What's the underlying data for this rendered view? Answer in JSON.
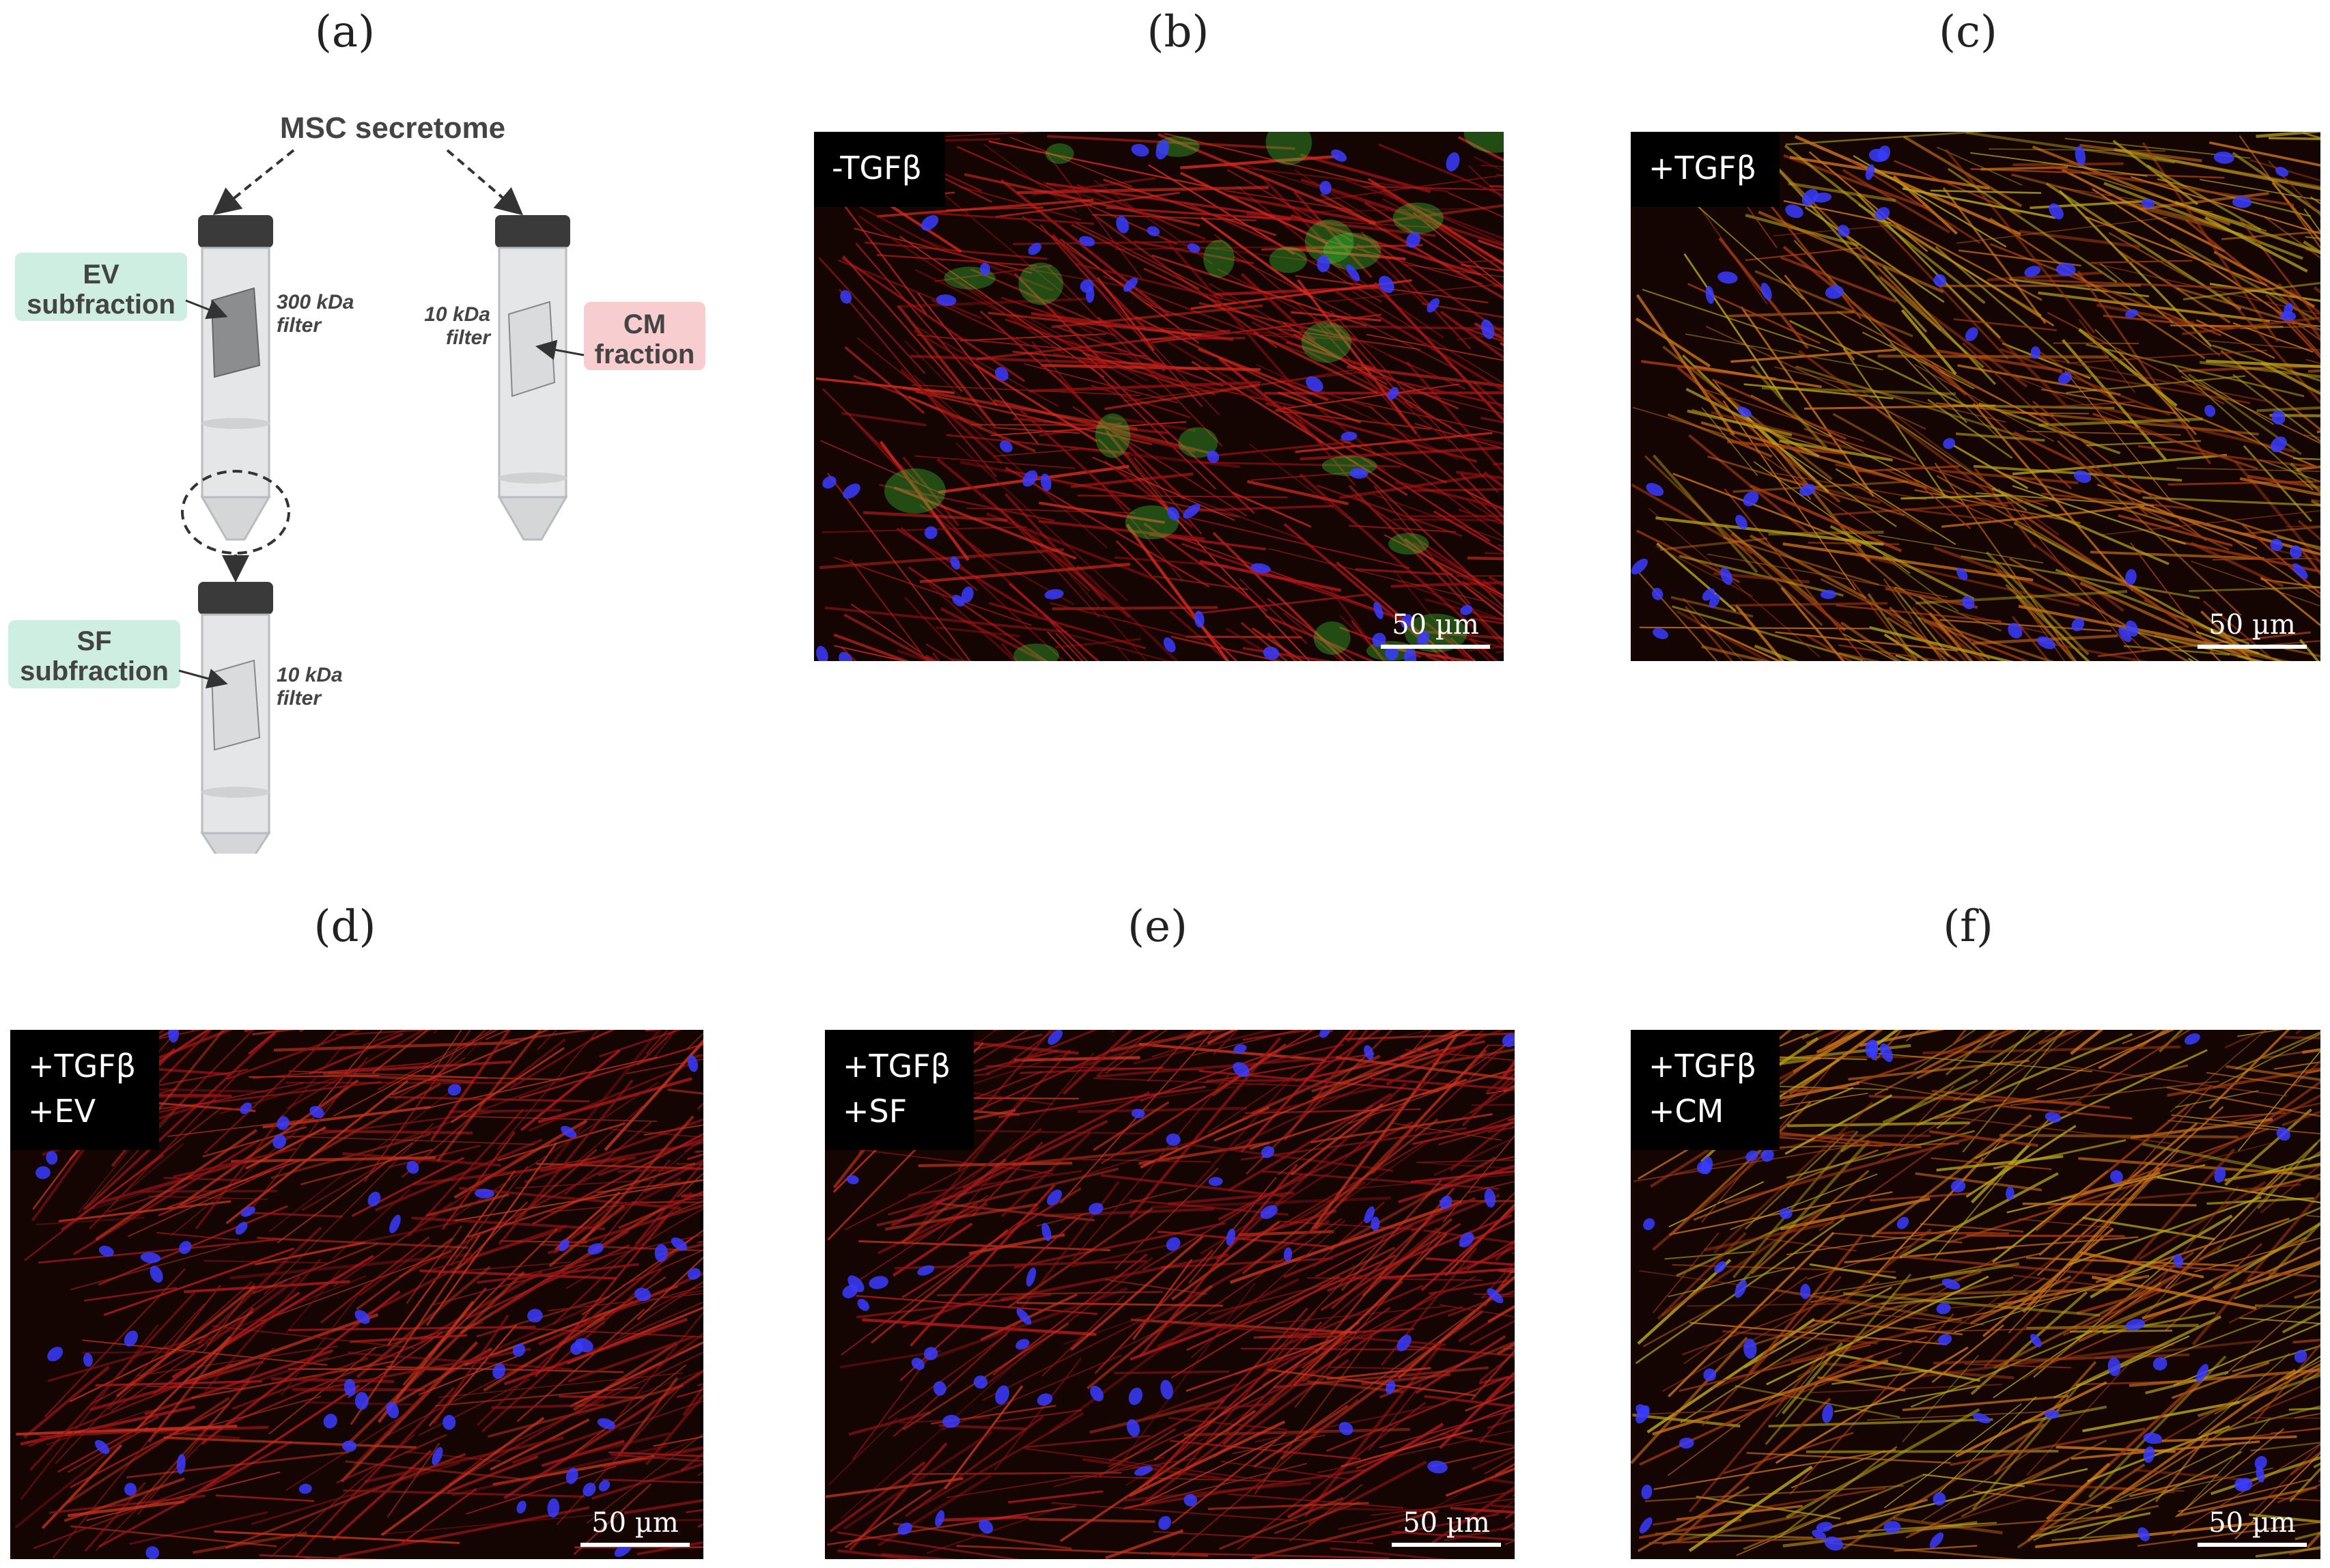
{
  "panel_labels": [
    "(a)",
    "(b)",
    "(c)",
    "(d)",
    "(e)",
    "(f)"
  ],
  "schematic": {
    "title": "MSC secretome",
    "ev_label": "EV\nsubfraction",
    "cm_label": "CM\nfraction",
    "sf_label": "SF\nsubfraction",
    "filter_300": "300 kDa\nfilter",
    "filter_10_cm": "10 kDa\nfilter",
    "filter_10_sf": "10 kDa\nfilter",
    "colors": {
      "ev_box": "#cdeee0",
      "cm_box": "#f8cdd0",
      "tube_cap": "#3a3a3a",
      "tube_body": "#e4e6e8"
    }
  },
  "images": [
    {
      "id": "b",
      "tag": "-TGFβ",
      "scale": "50 µm",
      "tone": "red-green"
    },
    {
      "id": "c",
      "tag": "+TGFβ",
      "scale": "50 µm",
      "tone": "yellow"
    },
    {
      "id": "d",
      "tag": "+TGFβ\n+EV",
      "scale": "50 µm",
      "tone": "red"
    },
    {
      "id": "e",
      "tag": "+TGFβ\n+SF",
      "scale": "50 µm",
      "tone": "red"
    },
    {
      "id": "f",
      "tag": "+TGFβ\n+CM",
      "scale": "50 µm",
      "tone": "yellow"
    }
  ],
  "stain_colors": {
    "actin": "#c8191b",
    "alpha_sma": "#c8c21e",
    "nuclei": "#3a3cff",
    "green": "#3fd43a"
  }
}
